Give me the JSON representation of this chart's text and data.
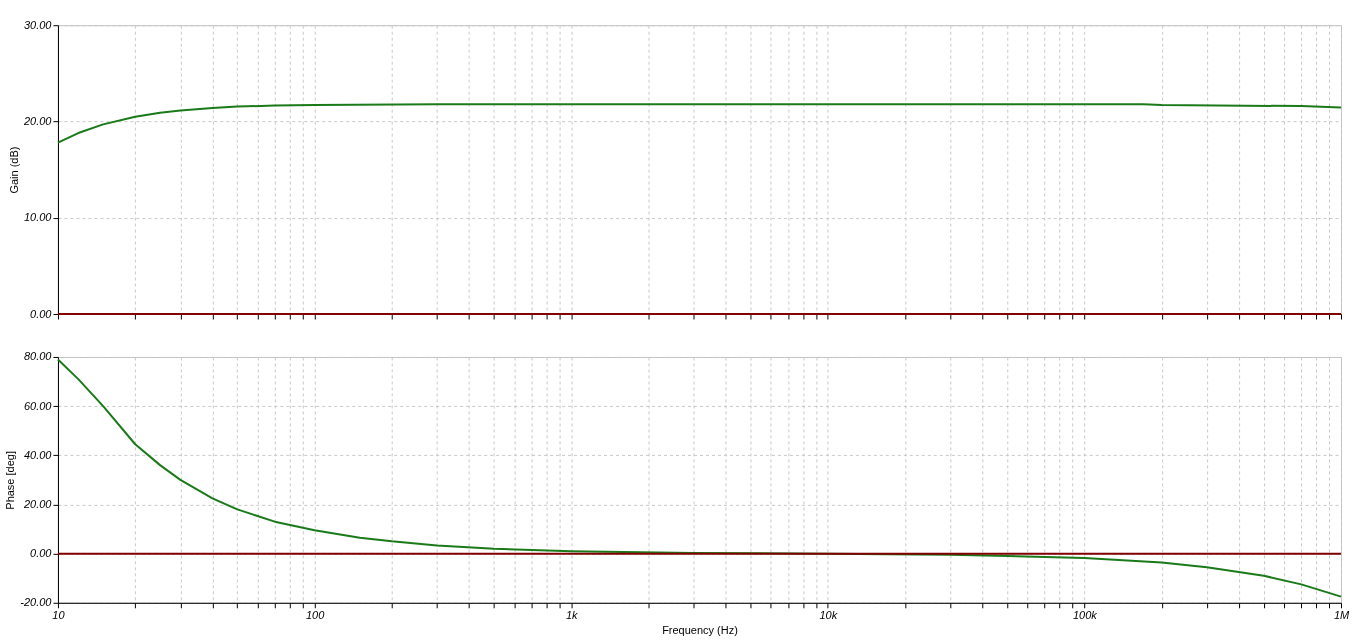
{
  "chart_data": [
    {
      "type": "line",
      "ylabel": "Gain (dB)",
      "xlim": [
        10,
        1000000
      ],
      "log": "x",
      "grid": true,
      "tick_labels": "y",
      "line_style": "solid",
      "xticks": [
        10,
        20,
        30,
        40,
        50,
        60,
        70,
        80,
        90,
        100,
        200,
        300,
        400,
        500,
        600,
        700,
        800,
        900,
        1000,
        2000,
        3000,
        4000,
        5000,
        6000,
        7000,
        8000,
        9000,
        10000,
        20000,
        30000,
        40000,
        50000,
        60000,
        70000,
        80000,
        90000,
        100000,
        200000,
        300000,
        400000,
        500000,
        600000,
        700000,
        800000,
        900000,
        1000000
      ],
      "ylim": [
        0,
        30
      ],
      "yticks": [
        {
          "value": 0,
          "label": "0.00"
        },
        {
          "value": 10,
          "label": "10.00"
        },
        {
          "value": 20,
          "label": "20.00"
        },
        {
          "value": 30,
          "label": "30.00"
        }
      ],
      "x": [
        10,
        12,
        15,
        20,
        25,
        30,
        40,
        50,
        70,
        100,
        300,
        1000,
        10000,
        100000,
        170000,
        200000,
        700000,
        1000000
      ],
      "series": [
        {
          "color": "#1a7a1a",
          "values": [
            17.8,
            18.8,
            19.7,
            20.5,
            20.9,
            21.15,
            21.4,
            21.55,
            21.65,
            21.7,
            21.8,
            21.8,
            21.8,
            21.8,
            21.8,
            21.7,
            21.6,
            21.45
          ]
        }
      ],
      "ref_lines": [
        {
          "axis": "y",
          "value": 0,
          "color": "#800000"
        }
      ]
    },
    {
      "type": "line",
      "ylabel": "Phase [deg]",
      "xlabel": "Frequency (Hz)",
      "xlim": [
        10,
        1000000
      ],
      "log": "x",
      "grid": true,
      "line_style": "solid",
      "xticks": [
        {
          "value": 10,
          "label": "10"
        },
        {
          "value": 20,
          "label": null
        },
        {
          "value": 30,
          "label": null
        },
        {
          "value": 40,
          "label": null
        },
        {
          "value": 50,
          "label": null
        },
        {
          "value": 60,
          "label": null
        },
        {
          "value": 70,
          "label": null
        },
        {
          "value": 80,
          "label": null
        },
        {
          "value": 90,
          "label": null
        },
        {
          "value": 100,
          "label": "100"
        },
        {
          "value": 200,
          "label": null
        },
        {
          "value": 300,
          "label": null
        },
        {
          "value": 400,
          "label": null
        },
        {
          "value": 500,
          "label": null
        },
        {
          "value": 600,
          "label": null
        },
        {
          "value": 700,
          "label": null
        },
        {
          "value": 800,
          "label": null
        },
        {
          "value": 900,
          "label": null
        },
        {
          "value": 1000,
          "label": "1k"
        },
        {
          "value": 2000,
          "label": null
        },
        {
          "value": 3000,
          "label": null
        },
        {
          "value": 4000,
          "label": null
        },
        {
          "value": 5000,
          "label": null
        },
        {
          "value": 6000,
          "label": null
        },
        {
          "value": 7000,
          "label": null
        },
        {
          "value": 8000,
          "label": null
        },
        {
          "value": 9000,
          "label": null
        },
        {
          "value": 10000,
          "label": "10k"
        },
        {
          "value": 20000,
          "label": null
        },
        {
          "value": 30000,
          "label": null
        },
        {
          "value": 40000,
          "label": null
        },
        {
          "value": 50000,
          "label": null
        },
        {
          "value": 60000,
          "label": null
        },
        {
          "value": 70000,
          "label": null
        },
        {
          "value": 80000,
          "label": null
        },
        {
          "value": 90000,
          "label": null
        },
        {
          "value": 100000,
          "label": "100k"
        },
        {
          "value": 200000,
          "label": null
        },
        {
          "value": 300000,
          "label": null
        },
        {
          "value": 400000,
          "label": null
        },
        {
          "value": 500000,
          "label": null
        },
        {
          "value": 600000,
          "label": null
        },
        {
          "value": 700000,
          "label": null
        },
        {
          "value": 800000,
          "label": null
        },
        {
          "value": 900000,
          "label": null
        },
        {
          "value": 1000000,
          "label": "1M"
        }
      ],
      "ylim": [
        -20,
        80
      ],
      "yticks": [
        {
          "value": -20,
          "label": "-20.00"
        },
        {
          "value": 0,
          "label": "0.00"
        },
        {
          "value": 20,
          "label": "20.00"
        },
        {
          "value": 40,
          "label": "40.00"
        },
        {
          "value": 60,
          "label": "60.00"
        },
        {
          "value": 80,
          "label": "80.00"
        }
      ],
      "x": [
        10,
        12,
        15,
        20,
        25,
        30,
        40,
        50,
        70,
        100,
        150,
        200,
        300,
        500,
        1000,
        3000,
        10000,
        30000,
        50000,
        100000,
        200000,
        300000,
        500000,
        700000,
        1000000
      ],
      "series": [
        {
          "color": "#1a7a1a",
          "values": [
            79,
            71,
            60,
            44.5,
            36,
            30,
            22.5,
            18,
            13,
            9.5,
            6.5,
            5,
            3.3,
            2,
            1,
            0.3,
            0,
            -0.5,
            -1,
            -1.8,
            -3.6,
            -5.5,
            -9,
            -12.5,
            -17.5
          ]
        }
      ],
      "ref_lines": [
        {
          "axis": "y",
          "value": 0,
          "color": "#800000"
        }
      ]
    }
  ]
}
